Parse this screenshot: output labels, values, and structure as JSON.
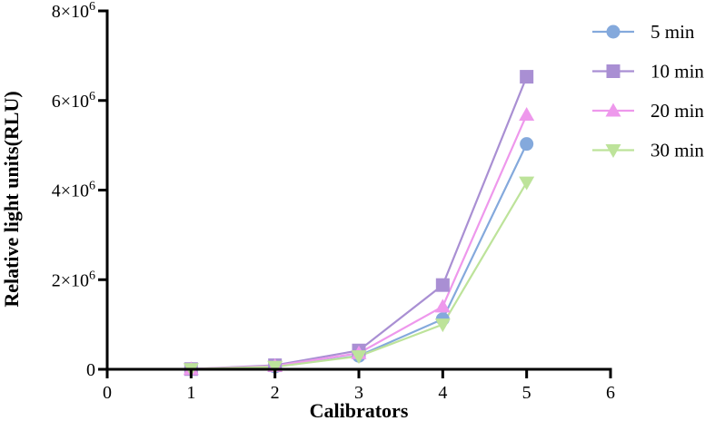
{
  "chart_data": {
    "type": "line",
    "xlabel": "Calibrators",
    "ylabel": "Relative light units(RLU)",
    "xlim": [
      0,
      6
    ],
    "ylim": [
      0,
      8000000
    ],
    "xticks": [
      0,
      1,
      2,
      3,
      4,
      5,
      6
    ],
    "yticks": [
      0,
      2000000,
      4000000,
      6000000,
      8000000
    ],
    "ytick_labels": [
      {
        "mantissa": "0",
        "exponent": ""
      },
      {
        "mantissa": "2×10",
        "exponent": "6"
      },
      {
        "mantissa": "4×10",
        "exponent": "6"
      },
      {
        "mantissa": "6×10",
        "exponent": "6"
      },
      {
        "mantissa": "8×10",
        "exponent": "6"
      }
    ],
    "grid": false,
    "legend_position": "top-right",
    "series": [
      {
        "name": "5 min",
        "color": "#84a9dc",
        "marker": "circle",
        "x": [
          1,
          2,
          3,
          4,
          5
        ],
        "y": [
          5000,
          60000,
          300000,
          1120000,
          5030000
        ]
      },
      {
        "name": "10 min",
        "color": "#a98fd3",
        "marker": "square",
        "x": [
          1,
          2,
          3,
          4,
          5
        ],
        "y": [
          5000,
          90000,
          420000,
          1880000,
          6530000
        ]
      },
      {
        "name": "20 min",
        "color": "#ee98ec",
        "marker": "triangle-up",
        "x": [
          1,
          2,
          3,
          4,
          5
        ],
        "y": [
          5000,
          75000,
          360000,
          1400000,
          5680000
        ]
      },
      {
        "name": "30 min",
        "color": "#bde39a",
        "marker": "triangle-down",
        "x": [
          1,
          2,
          3,
          4,
          5
        ],
        "y": [
          5000,
          55000,
          290000,
          1000000,
          4170000
        ]
      }
    ]
  }
}
